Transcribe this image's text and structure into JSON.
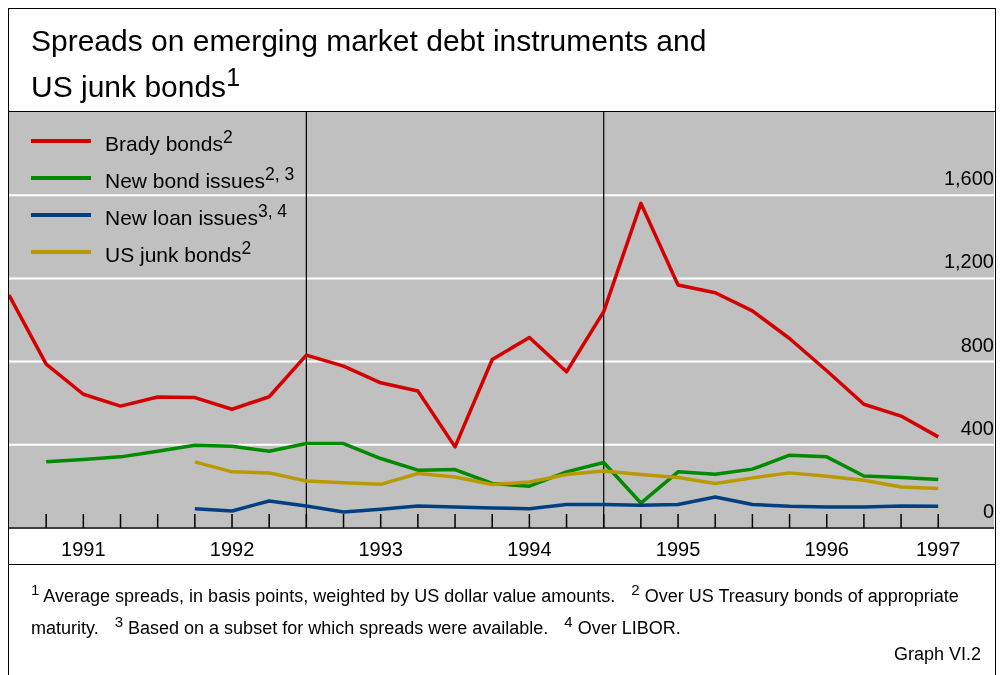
{
  "chart_data": {
    "type": "line",
    "title": "Spreads on emerging market debt instruments and US junk bonds$^{1}$",
    "x": [
      1991,
      1991.25,
      1991.5,
      1991.75,
      1992,
      1992.25,
      1992.5,
      1992.75,
      1993,
      1993.25,
      1993.5,
      1993.75,
      1994,
      1994.25,
      1994.5,
      1994.75,
      1995,
      1995.25,
      1995.5,
      1995.75,
      1996,
      1996.25,
      1996.5,
      1996.75,
      1997,
      1997.25
    ],
    "series": [
      {
        "name": "Brady bonds$^{2}$",
        "color": "#d40000",
        "values": [
          1120,
          788,
          643,
          586,
          630,
          627,
          571,
          631,
          831,
          778,
          698,
          659,
          390,
          810,
          916,
          751,
          1040,
          1561,
          1168,
          1131,
          1044,
          911,
          756,
          595,
          538,
          438
        ]
      },
      {
        "name": "New bond issues$^{2, 3}$",
        "color": "#008a00",
        "values": [
          null,
          318,
          329,
          342,
          369,
          398,
          393,
          369,
          406,
          406,
          334,
          278,
          281,
          214,
          201,
          270,
          315,
          120,
          270,
          258,
          283,
          350,
          342,
          250,
          243,
          233
        ]
      },
      {
        "name": "New loan issues$^{3, 4}$",
        "color": "#004080",
        "values": [
          null,
          null,
          null,
          null,
          null,
          93,
          82,
          130,
          106,
          77,
          90,
          106,
          101,
          96,
          93,
          113,
          113,
          109,
          113,
          149,
          113,
          104,
          101,
          101,
          106,
          104
        ]
      },
      {
        "name": "US junk bonds$^{2}$",
        "color": "#b89a00",
        "values": [
          null,
          null,
          null,
          null,
          null,
          318,
          270,
          265,
          226,
          217,
          210,
          262,
          245,
          209,
          221,
          257,
          274,
          257,
          243,
          214,
          241,
          265,
          249,
          230,
          197,
          190
        ]
      }
    ],
    "xlim": [
      1991,
      1997.625
    ],
    "xticks": [
      {
        "value": 1991.25,
        "label": null
      },
      {
        "value": 1991.5,
        "label": "1991"
      },
      {
        "value": 1991.75,
        "label": null
      },
      {
        "value": 1992,
        "label": null
      },
      {
        "value": 1992.25,
        "label": null
      },
      {
        "value": 1992.5,
        "label": "1992"
      },
      {
        "value": 1992.75,
        "label": null
      },
      {
        "value": 1993,
        "label": null
      },
      {
        "value": 1993.25,
        "label": null
      },
      {
        "value": 1993.5,
        "label": "1993"
      },
      {
        "value": 1993.75,
        "label": null
      },
      {
        "value": 1994,
        "label": null
      },
      {
        "value": 1994.25,
        "label": null
      },
      {
        "value": 1994.5,
        "label": "1994"
      },
      {
        "value": 1994.75,
        "label": null
      },
      {
        "value": 1995,
        "label": null
      },
      {
        "value": 1995.25,
        "label": null
      },
      {
        "value": 1995.5,
        "label": "1995"
      },
      {
        "value": 1995.75,
        "label": null
      },
      {
        "value": 1996,
        "label": null
      },
      {
        "value": 1996.25,
        "label": null
      },
      {
        "value": 1996.5,
        "label": "1996"
      },
      {
        "value": 1996.75,
        "label": null
      },
      {
        "value": 1997,
        "label": null
      },
      {
        "value": 1997.25,
        "label": "1997"
      }
    ],
    "ylim": [
      0,
      2000
    ],
    "yticks": [
      0,
      400,
      800,
      {
        "value": 1200,
        "label": "1,200"
      },
      {
        "value": 1600,
        "label": "1,600"
      }
    ],
    "ref_lines": [
      {
        "axis": "x",
        "value": 1993,
        "color": "#000000"
      },
      {
        "axis": "x",
        "value": 1995,
        "color": "#000000"
      }
    ],
    "grid": "y",
    "legend": "top left",
    "marker": "none",
    "line_style": "solid",
    "annotations": [
      "$^{1}$ Average spreads, in basis points, weighted by US dollar value amounts.",
      "$^{2}$ Over US Treasury bonds of appropriate maturity.",
      "$^{3}$ Based on a subset for which spreads were available.",
      "$^{4}$ Over LIBOR.",
      "Graph VI.2"
    ]
  }
}
